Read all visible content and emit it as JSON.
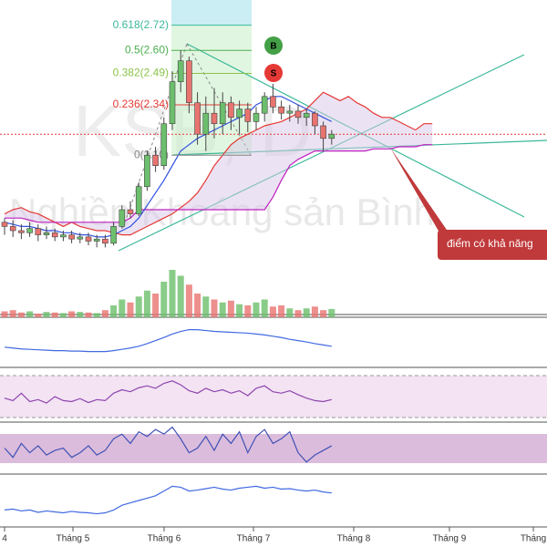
{
  "chart_data": {
    "type": "candlestick",
    "title": "KSB, D",
    "subtitle": "Nghiền Khoáng sản Bình",
    "ylim": [
      1.34,
      2.84
    ],
    "up_color": "#6cbf6c",
    "down_color": "#e8736f",
    "open": [
      1.78,
      1.76,
      1.74,
      1.73,
      1.75,
      1.72,
      1.73,
      1.71,
      1.72,
      1.7,
      1.71,
      1.69,
      1.7,
      1.68,
      1.76,
      1.84,
      1.82,
      1.95,
      2.1,
      2.05,
      2.25,
      2.45,
      2.55,
      2.35,
      2.2,
      2.3,
      2.25,
      2.35,
      2.28,
      2.32,
      2.26,
      2.3,
      2.38,
      2.33,
      2.3,
      2.31,
      2.28,
      2.3,
      2.24,
      2.18
    ],
    "close": [
      1.76,
      1.74,
      1.73,
      1.75,
      1.72,
      1.73,
      1.71,
      1.72,
      1.7,
      1.71,
      1.69,
      1.7,
      1.68,
      1.76,
      1.84,
      1.82,
      1.95,
      2.1,
      2.05,
      2.25,
      2.45,
      2.55,
      2.35,
      2.2,
      2.3,
      2.25,
      2.35,
      2.28,
      2.32,
      2.26,
      2.3,
      2.38,
      2.33,
      2.3,
      2.31,
      2.28,
      2.3,
      2.24,
      2.18,
      2.2
    ],
    "high": [
      1.8,
      1.79,
      1.77,
      1.78,
      1.77,
      1.76,
      1.75,
      1.74,
      1.74,
      1.73,
      1.73,
      1.72,
      1.72,
      1.78,
      1.86,
      1.88,
      1.97,
      2.12,
      2.14,
      2.28,
      2.5,
      2.6,
      2.57,
      2.4,
      2.38,
      2.42,
      2.4,
      2.38,
      2.36,
      2.35,
      2.33,
      2.4,
      2.44,
      2.36,
      2.34,
      2.34,
      2.32,
      2.31,
      2.26,
      2.22
    ],
    "low": [
      1.72,
      1.71,
      1.7,
      1.71,
      1.69,
      1.7,
      1.69,
      1.69,
      1.68,
      1.68,
      1.67,
      1.66,
      1.66,
      1.67,
      1.75,
      1.8,
      1.81,
      1.93,
      2.02,
      2.03,
      2.22,
      2.4,
      2.3,
      2.15,
      2.12,
      2.18,
      2.2,
      2.22,
      2.2,
      2.21,
      2.22,
      2.26,
      2.3,
      2.27,
      2.26,
      2.25,
      2.24,
      2.2,
      2.12,
      2.15
    ],
    "baseline": [
      1.78,
      1.77,
      1.76,
      1.76,
      1.75,
      1.74,
      1.74,
      1.73,
      1.73,
      1.72,
      1.72,
      1.71,
      1.71,
      1.72,
      1.74,
      1.76,
      1.8,
      1.86,
      1.92,
      1.98,
      2.05,
      2.12,
      2.15,
      2.18,
      2.2,
      2.22,
      2.24,
      2.26,
      2.28,
      2.3,
      2.34,
      2.36,
      2.38,
      2.38,
      2.36,
      2.34,
      2.32,
      2.3,
      2.28,
      2.26
    ],
    "cloud_upper": [
      1.82,
      1.84,
      1.85,
      1.83,
      1.82,
      1.8,
      1.78,
      1.76,
      1.78,
      1.76,
      1.75,
      1.74,
      1.74,
      1.73,
      1.72,
      1.72,
      1.74,
      1.76,
      1.78,
      1.8,
      1.82,
      1.85,
      1.88,
      1.92,
      1.98,
      2.05,
      2.1,
      2.15,
      2.18,
      2.2,
      2.22,
      2.24,
      2.25,
      2.26,
      2.28,
      2.3,
      2.32,
      2.36,
      2.4,
      2.38,
      2.36,
      2.38,
      2.35,
      2.33,
      2.3,
      2.28,
      2.28,
      2.26,
      2.24,
      2.22,
      2.25,
      2.25
    ],
    "cloud_lower": [
      1.8,
      1.8,
      1.8,
      1.79,
      1.78,
      1.78,
      1.78,
      1.78,
      1.78,
      1.78,
      1.78,
      1.78,
      1.78,
      1.78,
      1.78,
      1.8,
      1.84,
      1.84,
      1.84,
      1.84,
      1.84,
      1.84,
      1.84,
      1.84,
      1.84,
      1.84,
      1.84,
      1.84,
      1.84,
      1.84,
      1.84,
      1.84,
      1.9,
      1.98,
      2.05,
      2.08,
      2.1,
      2.12,
      2.12,
      2.12,
      2.12,
      2.12,
      2.12,
      2.12,
      2.13,
      2.13,
      2.13,
      2.14,
      2.14,
      2.14,
      2.15,
      2.15
    ],
    "fib_levels": [
      {
        "value": 2.72,
        "label": "0.618(2.72)"
      },
      {
        "value": 2.6,
        "label": "0.5(2.60)"
      },
      {
        "value": 2.49,
        "label": "0.382(2.49)"
      },
      {
        "value": 2.34,
        "label": "0.236(2.34)"
      },
      {
        "value": 2.1,
        "label": "0(2.10)"
      }
    ],
    "fib_colors": [
      "#3cb89a",
      "#4caf50",
      "#8bc34a",
      "#e53935",
      "#888888"
    ],
    "signals": [
      "B",
      "S"
    ],
    "annotation": "điểm có khả năng",
    "x_labels": [
      "4",
      "Tháng 5",
      "Tháng 6",
      "Tháng 7",
      "Tháng 8",
      "Tháng 9",
      "Tháng"
    ],
    "volume": {
      "ylim": [
        0,
        100
      ],
      "values": [
        10,
        12,
        8,
        10,
        6,
        9,
        8,
        7,
        10,
        9,
        8,
        7,
        12,
        20,
        30,
        25,
        35,
        45,
        40,
        60,
        80,
        70,
        55,
        40,
        35,
        30,
        25,
        28,
        22,
        20,
        25,
        30,
        18,
        20,
        15,
        12,
        15,
        18,
        12,
        14
      ]
    },
    "macd": {
      "ylim": [
        0,
        100
      ],
      "color": "#4169e1",
      "values": [
        40,
        38,
        36,
        35,
        34,
        33,
        32,
        32,
        31,
        31,
        30,
        30,
        30,
        32,
        35,
        38,
        42,
        48,
        55,
        62,
        70,
        76,
        80,
        80,
        78,
        76,
        75,
        74,
        73,
        72,
        70,
        68,
        65,
        62,
        58,
        55,
        52,
        48,
        45,
        42
      ]
    },
    "rsi": {
      "ylim": [
        0,
        100
      ],
      "color": "#8e44ad",
      "values": [
        45,
        40,
        55,
        38,
        42,
        35,
        48,
        40,
        38,
        44,
        36,
        42,
        40,
        55,
        62,
        58,
        66,
        70,
        65,
        75,
        80,
        72,
        60,
        55,
        65,
        58,
        62,
        55,
        60,
        50,
        65,
        70,
        58,
        55,
        60,
        52,
        45,
        40,
        38,
        42
      ]
    },
    "stoch": {
      "ylim": [
        0,
        100
      ],
      "color": "#3f51b5",
      "values": [
        50,
        30,
        60,
        40,
        55,
        35,
        45,
        50,
        30,
        40,
        55,
        35,
        45,
        70,
        80,
        60,
        85,
        75,
        90,
        80,
        95,
        70,
        40,
        50,
        75,
        45,
        80,
        60,
        85,
        40,
        75,
        90,
        60,
        70,
        85,
        40,
        20,
        35,
        45,
        55
      ]
    },
    "momentum": {
      "ylim": [
        0,
        100
      ],
      "color": "#4169e1",
      "values": [
        30,
        32,
        28,
        30,
        25,
        28,
        26,
        24,
        27,
        25,
        24,
        22,
        24,
        30,
        40,
        45,
        50,
        55,
        60,
        70,
        80,
        78,
        70,
        72,
        75,
        78,
        74,
        72,
        76,
        78,
        80,
        76,
        78,
        74,
        75,
        72,
        70,
        72,
        68,
        66
      ]
    }
  }
}
